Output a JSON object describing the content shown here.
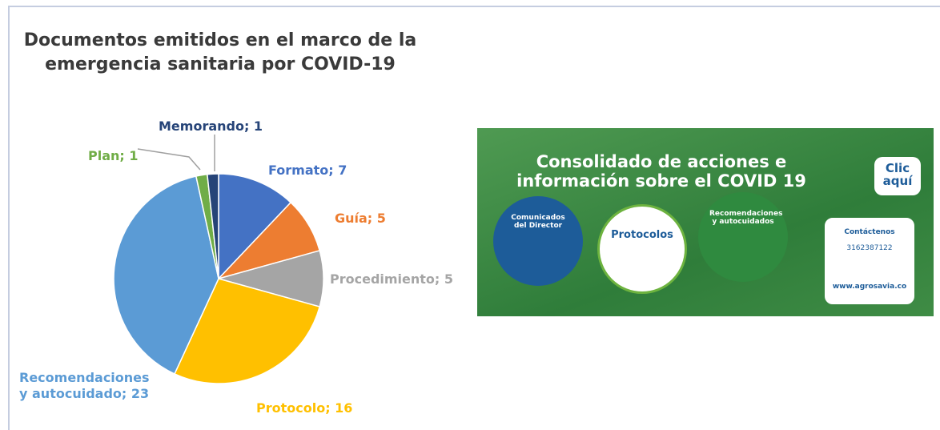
{
  "chart_data": {
    "type": "pie",
    "title": "Documentos emitidos en el marco de la emergencia sanitaria por COVID-19",
    "values": [
      7,
      5,
      5,
      16,
      23,
      1,
      1
    ],
    "value_labels": [
      "Formato; 7",
      "Guía; 5",
      "Procedimiento; 5",
      "Protocolo; 16",
      "Recomendaciones y autocuidado; 23",
      "Plan; 1",
      "Memorando; 1"
    ],
    "colors": [
      "#4472c4",
      "#ed7d31",
      "#a5a5a5",
      "#ffc000",
      "#5b9bd5",
      "#70ad47",
      "#264478"
    ]
  },
  "banner": {
    "title": "Consolidado de acciones e información sobre el COVID 19",
    "button": "Clic aquí",
    "items": [
      "Comunicados del Director",
      "Protocolos",
      "Recomendaciones y autocuidados"
    ],
    "contact": "Contáctenos",
    "phone": "3162387122",
    "web": "www.agrosavia.co"
  }
}
